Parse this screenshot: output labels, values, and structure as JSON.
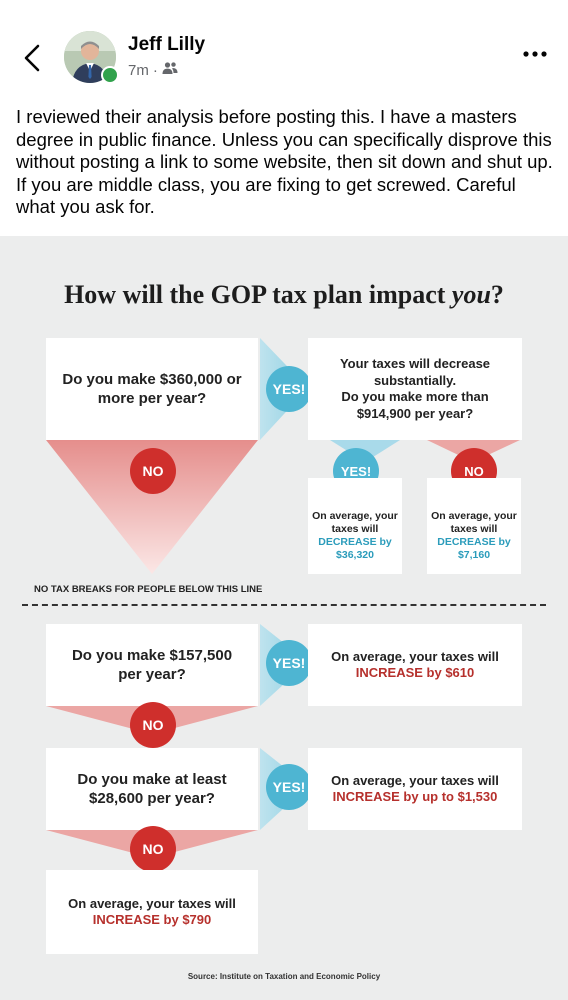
{
  "post": {
    "author": "Jeff Lilly",
    "time": "7m",
    "separator": "·",
    "audience_icon": "friends-icon",
    "text": "I reviewed their analysis before posting this. I have a masters degree in public finance. Unless you can specifically disprove this without posting a link to some website, then sit down and shut up. If you are middle class, you are fixing to get screwed. Careful what you ask for."
  },
  "icons": {
    "back": "chevron-left-icon",
    "more": "more-options-icon"
  },
  "colors": {
    "teal": "#4eb5d2",
    "red": "#cf2f2c",
    "background": "#eceded",
    "online": "#31a24c"
  },
  "infographic": {
    "title_main": "How will the GOP tax plan impact ",
    "title_em": "you",
    "title_q": "?",
    "q1": "Do you make $360,000 or more per year?",
    "q1_yes": "YES!",
    "q1_no": "NO",
    "r1_line1": "Your taxes will decrease substantially.",
    "r1_line2": "Do you make more than $914,900 per year?",
    "r1_yes": "YES!",
    "r1_no": "NO",
    "yes_result_prefix": "On average, your taxes will",
    "yes_result_highlight": "DECREASE by $36,320",
    "no_result_prefix": "On average, your taxes will",
    "no_result_highlight": "DECREASE by $7,160",
    "line_label": "NO TAX BREAKS FOR PEOPLE BELOW THIS LINE",
    "q2": "Do you make $157,500 per year?",
    "q2_yes": "YES!",
    "q2_result_prefix": "On average, your taxes will",
    "q2_result_highlight": "INCREASE by $610",
    "q2_no": "NO",
    "q3": "Do you make at least $28,600 per year?",
    "q3_yes": "YES!",
    "q3_result_prefix": "On average, your taxes will",
    "q3_result_highlight": "INCREASE by up to $1,530",
    "q3_no": "NO",
    "final_prefix": "On average, your taxes will",
    "final_highlight": "INCREASE by $790",
    "source": "Source: Institute on Taxation and Economic Policy"
  }
}
